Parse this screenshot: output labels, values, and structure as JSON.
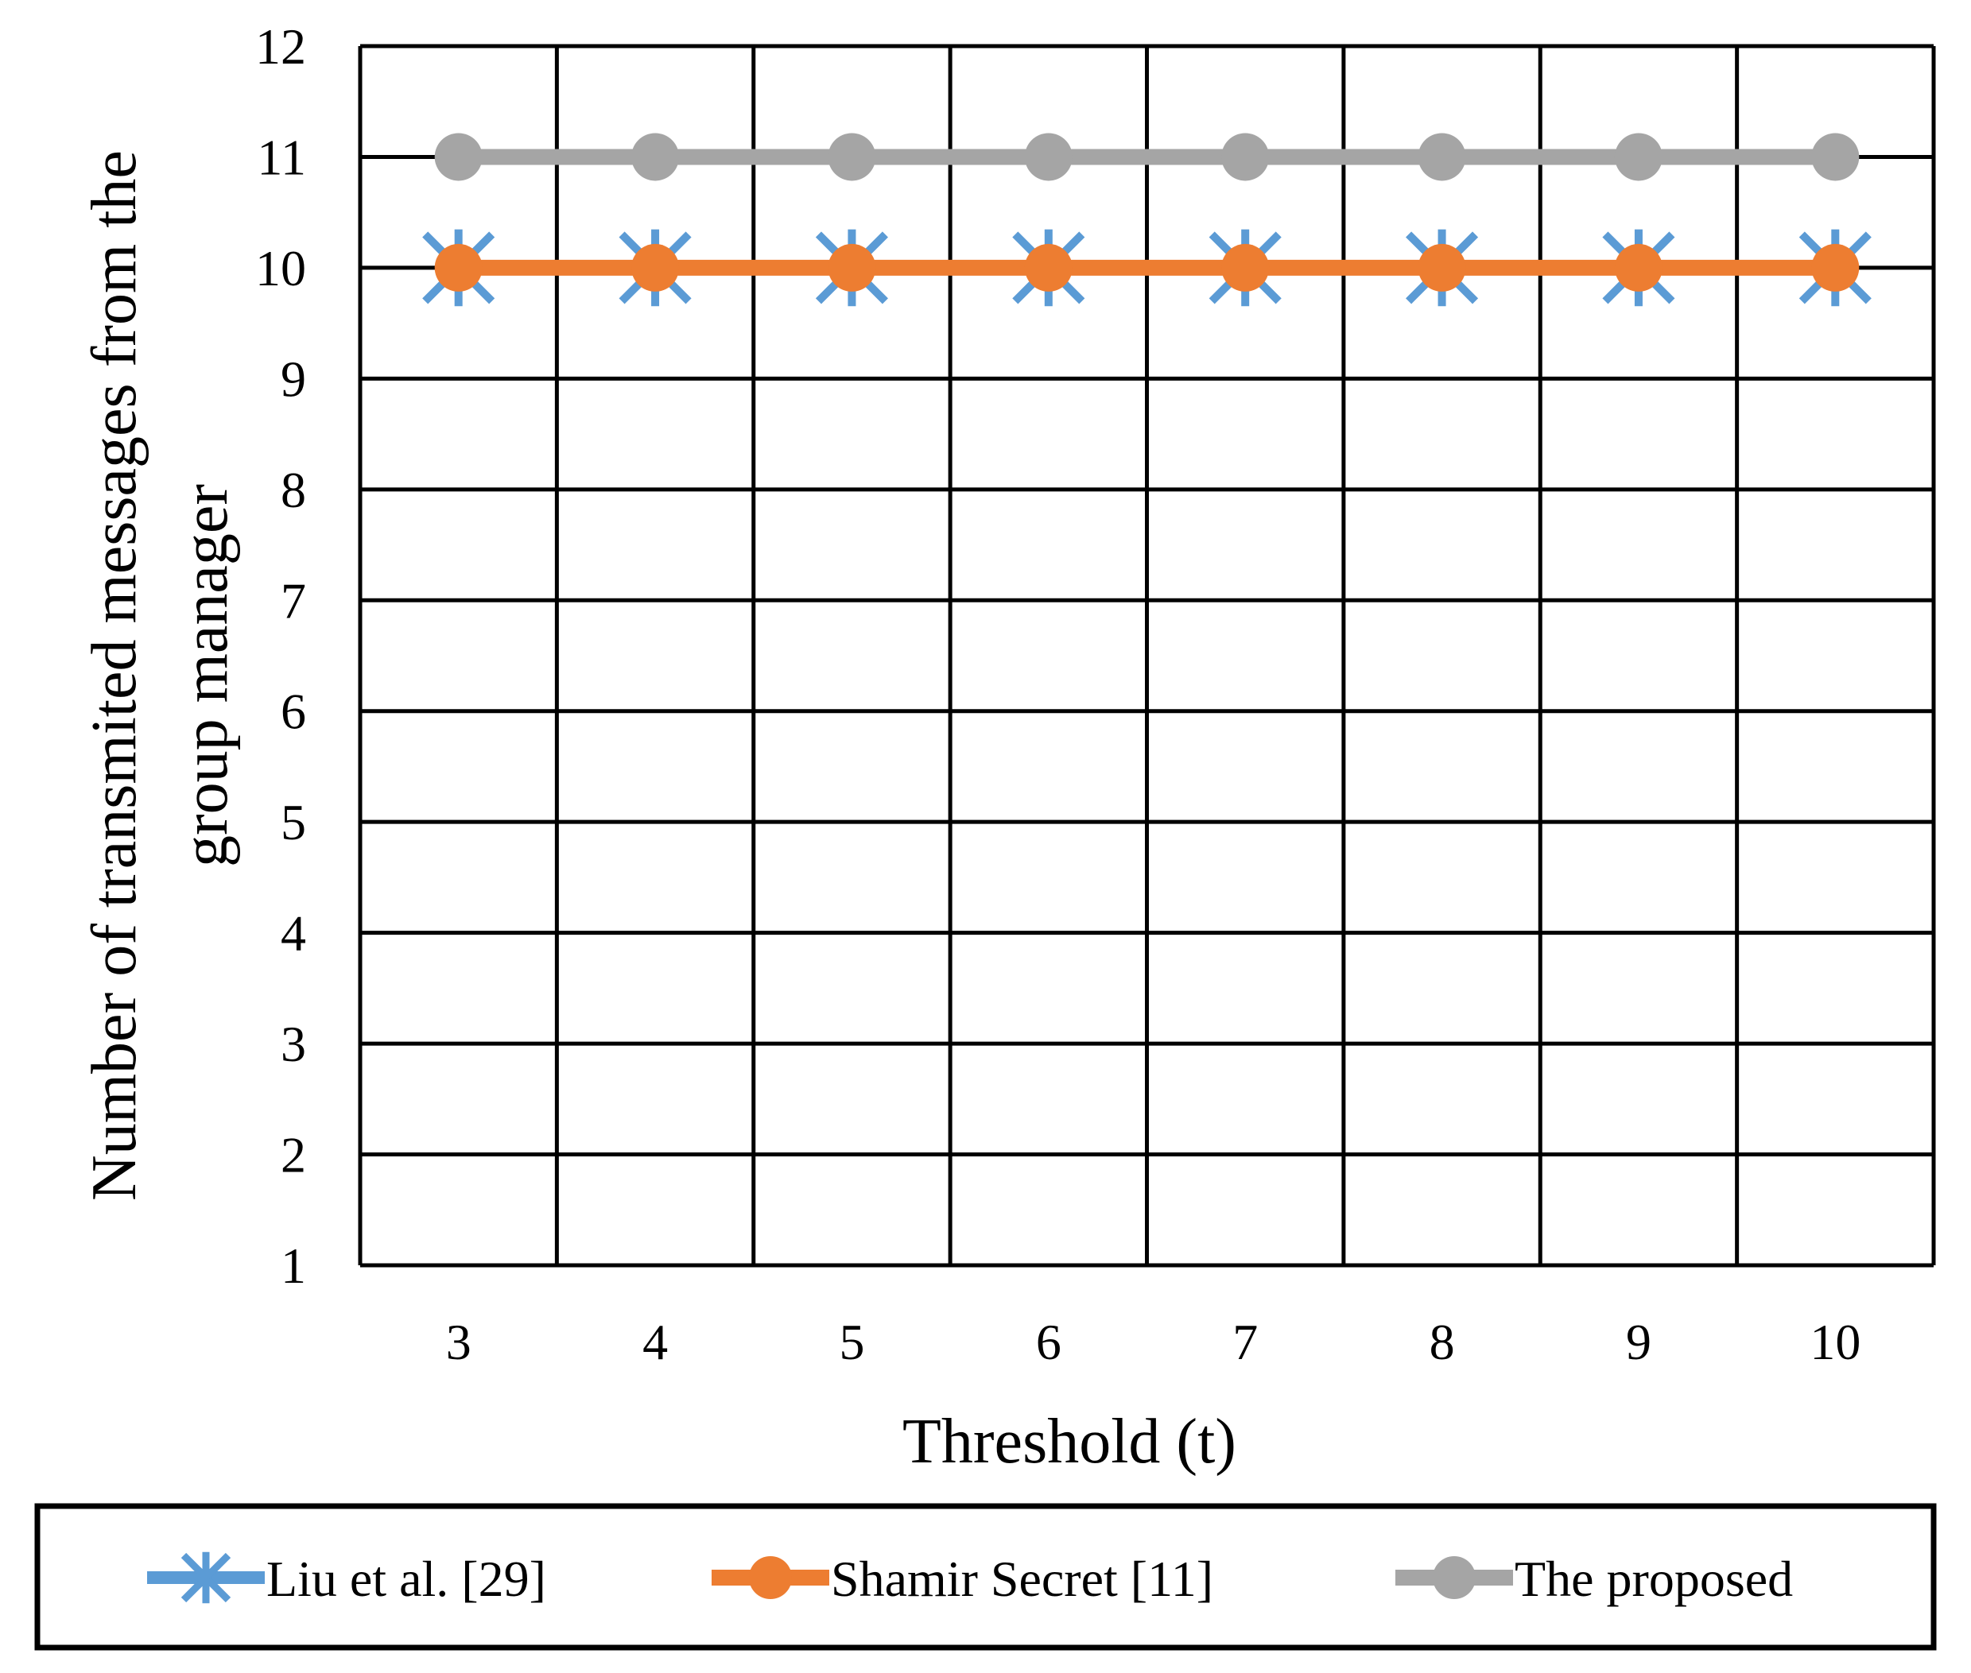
{
  "chart_data": {
    "type": "line",
    "title": "",
    "xlabel": "Threshold (t)",
    "ylabel_lines": [
      "Number of transmited messages  from the",
      "group manager"
    ],
    "categories": [
      "3",
      "4",
      "5",
      "6",
      "7",
      "8",
      "9",
      "10"
    ],
    "ylim": [
      1,
      12
    ],
    "yticks": [
      "1",
      "2",
      "3",
      "4",
      "5",
      "6",
      "7",
      "8",
      "9",
      "10",
      "11",
      "12"
    ],
    "grid": true,
    "legend_position": "bottom",
    "series": [
      {
        "name": "Liu et al. [29]",
        "values": [
          10,
          10,
          10,
          10,
          10,
          10,
          10,
          10
        ],
        "color": "#5b9bd5",
        "marker": "asterisk"
      },
      {
        "name": "Shamir Secret [11]",
        "values": [
          10,
          10,
          10,
          10,
          10,
          10,
          10,
          10
        ],
        "color": "#ed7d31",
        "marker": "circle"
      },
      {
        "name": "The proposed",
        "values": [
          11,
          11,
          11,
          11,
          11,
          11,
          11,
          11
        ],
        "color": "#a5a5a5",
        "marker": "circle"
      }
    ]
  }
}
